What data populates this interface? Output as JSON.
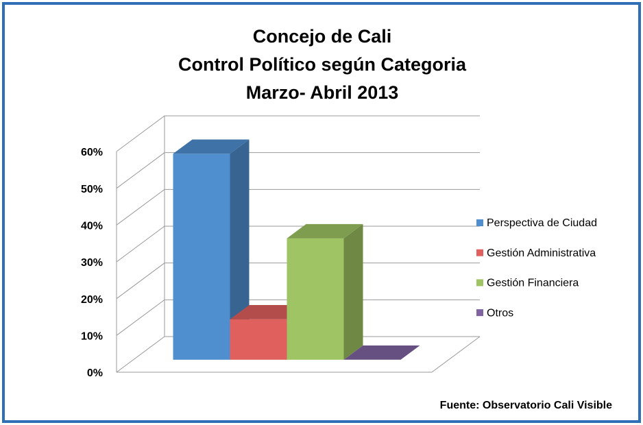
{
  "chart_data": {
    "type": "bar3d",
    "title": [
      "Concejo de Cali",
      "Control Político según Categoria",
      "Marzo- Abril 2013"
    ],
    "series": [
      {
        "name": "Perspectiva de Ciudad",
        "color": "#4f8fcf",
        "values": [
          56
        ]
      },
      {
        "name": "Gestión Administrativa",
        "color": "#e0605e",
        "values": [
          11
        ]
      },
      {
        "name": "Gestión Financiera",
        "color": "#9ec463",
        "values": [
          33
        ]
      },
      {
        "name": "Otros",
        "color": "#8064a2",
        "values": [
          0
        ]
      }
    ],
    "ylim": [
      0,
      60
    ],
    "yticks": [
      {
        "value": 0,
        "label": "0%"
      },
      {
        "value": 10,
        "label": "10%"
      },
      {
        "value": 20,
        "label": "20%"
      },
      {
        "value": 30,
        "label": "30%"
      },
      {
        "value": 40,
        "label": "40%"
      },
      {
        "value": 50,
        "label": "50%"
      },
      {
        "value": 60,
        "label": "60%"
      }
    ],
    "grid": true,
    "legend": "right",
    "source": "Fuente: Observatorio Cali Visible"
  }
}
